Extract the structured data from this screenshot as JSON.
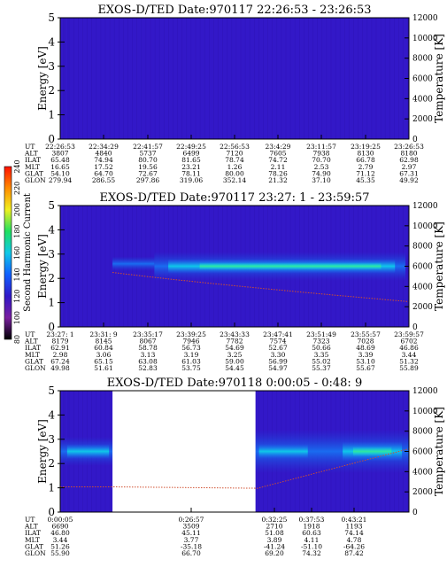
{
  "chart_data": [
    {
      "type": "heatmap",
      "title": "EXOS-D/TED   Date:970117  22:26:53 - 23:26:53",
      "ylabel": "Energy [eV]",
      "ylabel_right": "Temperature [K]",
      "ylim": [
        0,
        5
      ],
      "ylim_right": [
        0,
        12000
      ],
      "yticks": [
        "0",
        "1",
        "2",
        "3",
        "4",
        "5"
      ],
      "yticks_right": [
        "0",
        "2000",
        "4000",
        "6000",
        "8000",
        "10000",
        "12000"
      ],
      "ephemeris": {
        "labels": [
          "UT",
          "ALT",
          "ILAT",
          "MLT",
          "GLAT",
          "GLON"
        ],
        "columns": [
          [
            "22:26:53",
            "3807",
            "65.48",
            "16.65",
            "54.10",
            "279.94"
          ],
          [
            "22:34:29",
            "4840",
            "74.94",
            "17.52",
            "64.70",
            "286.55"
          ],
          [
            "22:41:57",
            "5737",
            "80.70",
            "19.56",
            "72.67",
            "297.86"
          ],
          [
            "22:49:25",
            "6499",
            "81.65",
            "23.21",
            "78.11",
            "319.06"
          ],
          [
            "22:56:53",
            "7120",
            "78.74",
            "1.26",
            "80.00",
            "352.14"
          ],
          [
            "23:4:29",
            "7605",
            "74.72",
            "2.11",
            "78.26",
            "21.32"
          ],
          [
            "23:11:57",
            "7938",
            "70.70",
            "2.53",
            "74.90",
            "37.10"
          ],
          [
            "23:19:25",
            "8130",
            "66.78",
            "2.79",
            "71.12",
            "45.35"
          ],
          [
            "23:26:53",
            "8180",
            "62.98",
            "2.97",
            "67.31",
            "49.92"
          ]
        ]
      },
      "bands": [],
      "temperature_trace": "none",
      "data_gaps": []
    },
    {
      "type": "heatmap",
      "title": "EXOS-D/TED   Date:970117  23:27: 1 - 23:59:57",
      "ylabel": "Energy [eV]",
      "ylabel_right": "Temperature [K]",
      "ylim": [
        0,
        5
      ],
      "ylim_right": [
        0,
        12000
      ],
      "yticks": [
        "0",
        "1",
        "2",
        "3",
        "4",
        "5"
      ],
      "yticks_right": [
        "0",
        "2000",
        "4000",
        "6000",
        "8000",
        "10000",
        "12000"
      ],
      "ephemeris": {
        "labels": [
          "UT",
          "ALT",
          "ILAT",
          "MLT",
          "GLAT",
          "GLON"
        ],
        "columns": [
          [
            "23:27: 1",
            "8179",
            "62.91",
            "2.98",
            "67.24",
            "49.98"
          ],
          [
            "23:31: 9",
            "8145",
            "60.84",
            "3.06",
            "65.15",
            "51.61"
          ],
          [
            "23:35:17",
            "8067",
            "58.78",
            "3.13",
            "63.08",
            "52.83"
          ],
          [
            "23:39:25",
            "7946",
            "56.73",
            "3.19",
            "61.03",
            "53.75"
          ],
          [
            "23:43:33",
            "7782",
            "54.69",
            "3.25",
            "59.00",
            "54.45"
          ],
          [
            "23:47:41",
            "7574",
            "52.67",
            "3.30",
            "56.99",
            "54.97"
          ],
          [
            "23:51:49",
            "7323",
            "50.66",
            "3.35",
            "55.02",
            "55.37"
          ],
          [
            "23:55:57",
            "7028",
            "48.69",
            "3.39",
            "53.10",
            "55.67"
          ],
          [
            "23:59:57",
            "6702",
            "46.86",
            "3.44",
            "51.32",
            "55.89"
          ]
        ]
      },
      "bands": [
        {
          "t0": 0.15,
          "t1": 0.27,
          "e0": 2.3,
          "e1": 2.9,
          "level": "mid"
        },
        {
          "t0": 0.27,
          "t1": 0.99,
          "e0": 1.9,
          "e1": 3.1,
          "level": "mid"
        },
        {
          "t0": 0.31,
          "t1": 0.96,
          "e0": 2.2,
          "e1": 2.8,
          "level": "high"
        },
        {
          "t0": 0.4,
          "t1": 0.92,
          "e0": 2.35,
          "e1": 2.65,
          "level": "peak"
        }
      ],
      "temperature_trace": "decreasing",
      "data_gaps": []
    },
    {
      "type": "heatmap",
      "title": "EXOS-D/TED   Date:970118  0:00:05 - 0:48: 9",
      "ylabel": "Energy [eV]",
      "ylabel_right": "Temperature [K]",
      "ylim": [
        0,
        5
      ],
      "ylim_right": [
        0,
        12000
      ],
      "yticks": [
        "0",
        "1",
        "2",
        "3",
        "4",
        "5"
      ],
      "yticks_right": [
        "0",
        "2000",
        "4000",
        "6000",
        "8000",
        "10000",
        "12000"
      ],
      "ephemeris": {
        "labels": [
          "UT",
          "ALT",
          "ILAT",
          "MLT",
          "GLAT",
          "GLON"
        ],
        "columns": [
          [
            "0:00:05",
            "6690",
            "46.80",
            "3.44",
            "51.26",
            "55.90"
          ],
          [
            "",
            "",
            "",
            "",
            "",
            ""
          ],
          [
            "",
            "",
            "",
            "",
            "",
            ""
          ],
          [
            "0:26:57",
            "3509",
            "45.11",
            "3.77",
            "-35.18",
            "66.70"
          ],
          [
            "0:32:25",
            "2710",
            "51.08",
            "3.89",
            "-41.24",
            "69.20"
          ],
          [
            "0:37:53",
            "1918",
            "60.63",
            "4.11",
            "-51.10",
            "74.32"
          ],
          [
            "0:43:21",
            "1193",
            "74.14",
            "4.78",
            "-64.26",
            "87.42"
          ]
        ]
      },
      "bands": [
        {
          "t0": 0.0,
          "t1": 0.15,
          "e0": 1.9,
          "e1": 3.1,
          "level": "mid"
        },
        {
          "t0": 0.02,
          "t1": 0.14,
          "e0": 2.2,
          "e1": 2.8,
          "level": "high"
        },
        {
          "t0": 0.56,
          "t1": 1.0,
          "e0": 1.6,
          "e1": 3.4,
          "level": "mid"
        },
        {
          "t0": 0.57,
          "t1": 0.71,
          "e0": 2.2,
          "e1": 2.8,
          "level": "high"
        },
        {
          "t0": 0.81,
          "t1": 0.98,
          "e0": 2.1,
          "e1": 2.9,
          "level": "high"
        },
        {
          "t0": 0.84,
          "t1": 0.95,
          "e0": 2.3,
          "e1": 2.7,
          "level": "peak"
        }
      ],
      "temperature_trace": "increasing",
      "data_gaps": [
        {
          "t0": 0.15,
          "t1": 0.56
        }
      ]
    }
  ],
  "colorbar": {
    "label": "Second Harmonic Current",
    "ticks": [
      "80",
      "100",
      "120",
      "140",
      "160",
      "180",
      "200",
      "220",
      "240"
    ],
    "colors": [
      "#000000",
      "#7a1fa0",
      "#3018c8",
      "#1060ff",
      "#10c8e8",
      "#20e060",
      "#f0f020",
      "#ff8c00",
      "#ff1000"
    ]
  }
}
